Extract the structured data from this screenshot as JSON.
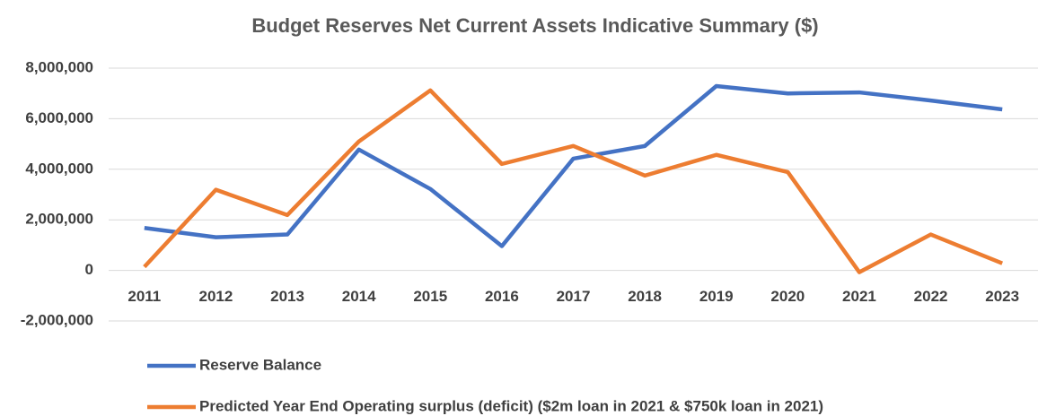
{
  "chart_data": {
    "type": "line",
    "title": "Budget Reserves Net Current Assets Indicative Summary ($)",
    "categories": [
      "2011",
      "2012",
      "2013",
      "2014",
      "2015",
      "2016",
      "2017",
      "2018",
      "2019",
      "2020",
      "2021",
      "2022",
      "2023"
    ],
    "series": [
      {
        "name": "Reserve Balance",
        "color": "#4472c4",
        "values": [
          1680000,
          1310000,
          1420000,
          4780000,
          3220000,
          960000,
          4420000,
          4920000,
          7290000,
          7000000,
          7040000,
          6720000,
          6370000
        ]
      },
      {
        "name": "Predicted Year End Operating surplus (deficit) ($2m loan in 2021 & $750k loan in 2021)",
        "color": "#ed7d31",
        "values": [
          140000,
          3190000,
          2190000,
          5100000,
          7120000,
          4210000,
          4920000,
          3750000,
          4570000,
          3890000,
          -70000,
          1420000,
          280000
        ]
      }
    ],
    "ylim": [
      -2000000,
      8000000
    ],
    "yticks": [
      {
        "value": -2000000,
        "label": "-2,000,000"
      },
      0,
      {
        "value": 2000000,
        "label": "2,000,000"
      },
      {
        "value": 4000000,
        "label": "4,000,000"
      },
      {
        "value": 6000000,
        "label": "6,000,000"
      },
      {
        "value": 8000000,
        "label": "8,000,000"
      }
    ],
    "grid": true,
    "legend": "bottom"
  }
}
